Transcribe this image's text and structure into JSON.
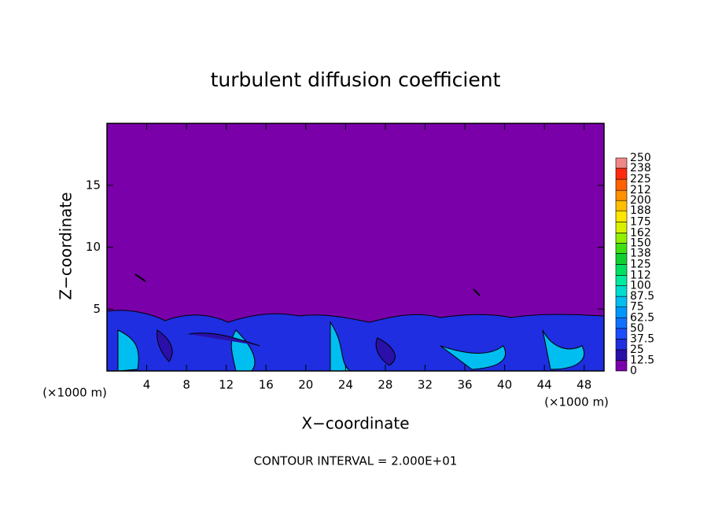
{
  "chart_data": {
    "type": "contour",
    "title": "turbulent diffusion coefficient",
    "xlabel": "X−coordinate",
    "ylabel": "Z−coordinate",
    "axis_unit": "(×1000 m)",
    "note": "CONTOUR INTERVAL = 2.000E+01",
    "xlim": [
      0,
      50
    ],
    "ylim": [
      0,
      20
    ],
    "xticks": [
      4,
      8,
      12,
      16,
      20,
      24,
      28,
      32,
      36,
      40,
      44,
      48
    ],
    "yticks": [
      5,
      10,
      15
    ],
    "colorbar_levels": [
      0,
      12.5,
      25,
      37.5,
      50,
      62.5,
      75,
      87.5,
      100,
      112,
      125,
      138,
      150,
      162,
      175,
      188,
      200,
      212,
      225,
      238,
      250
    ],
    "colorbar_colors": [
      "#7a00aa",
      "#2a10a8",
      "#1e2ee0",
      "#1c4cff",
      "#1070ff",
      "#0096ff",
      "#00bef0",
      "#00dcd0",
      "#00eaa0",
      "#00e060",
      "#10d030",
      "#40e010",
      "#90f000",
      "#d8f000",
      "#ffe600",
      "#ffbe00",
      "#ff9000",
      "#ff6000",
      "#ff2a10",
      "#f08888"
    ]
  }
}
